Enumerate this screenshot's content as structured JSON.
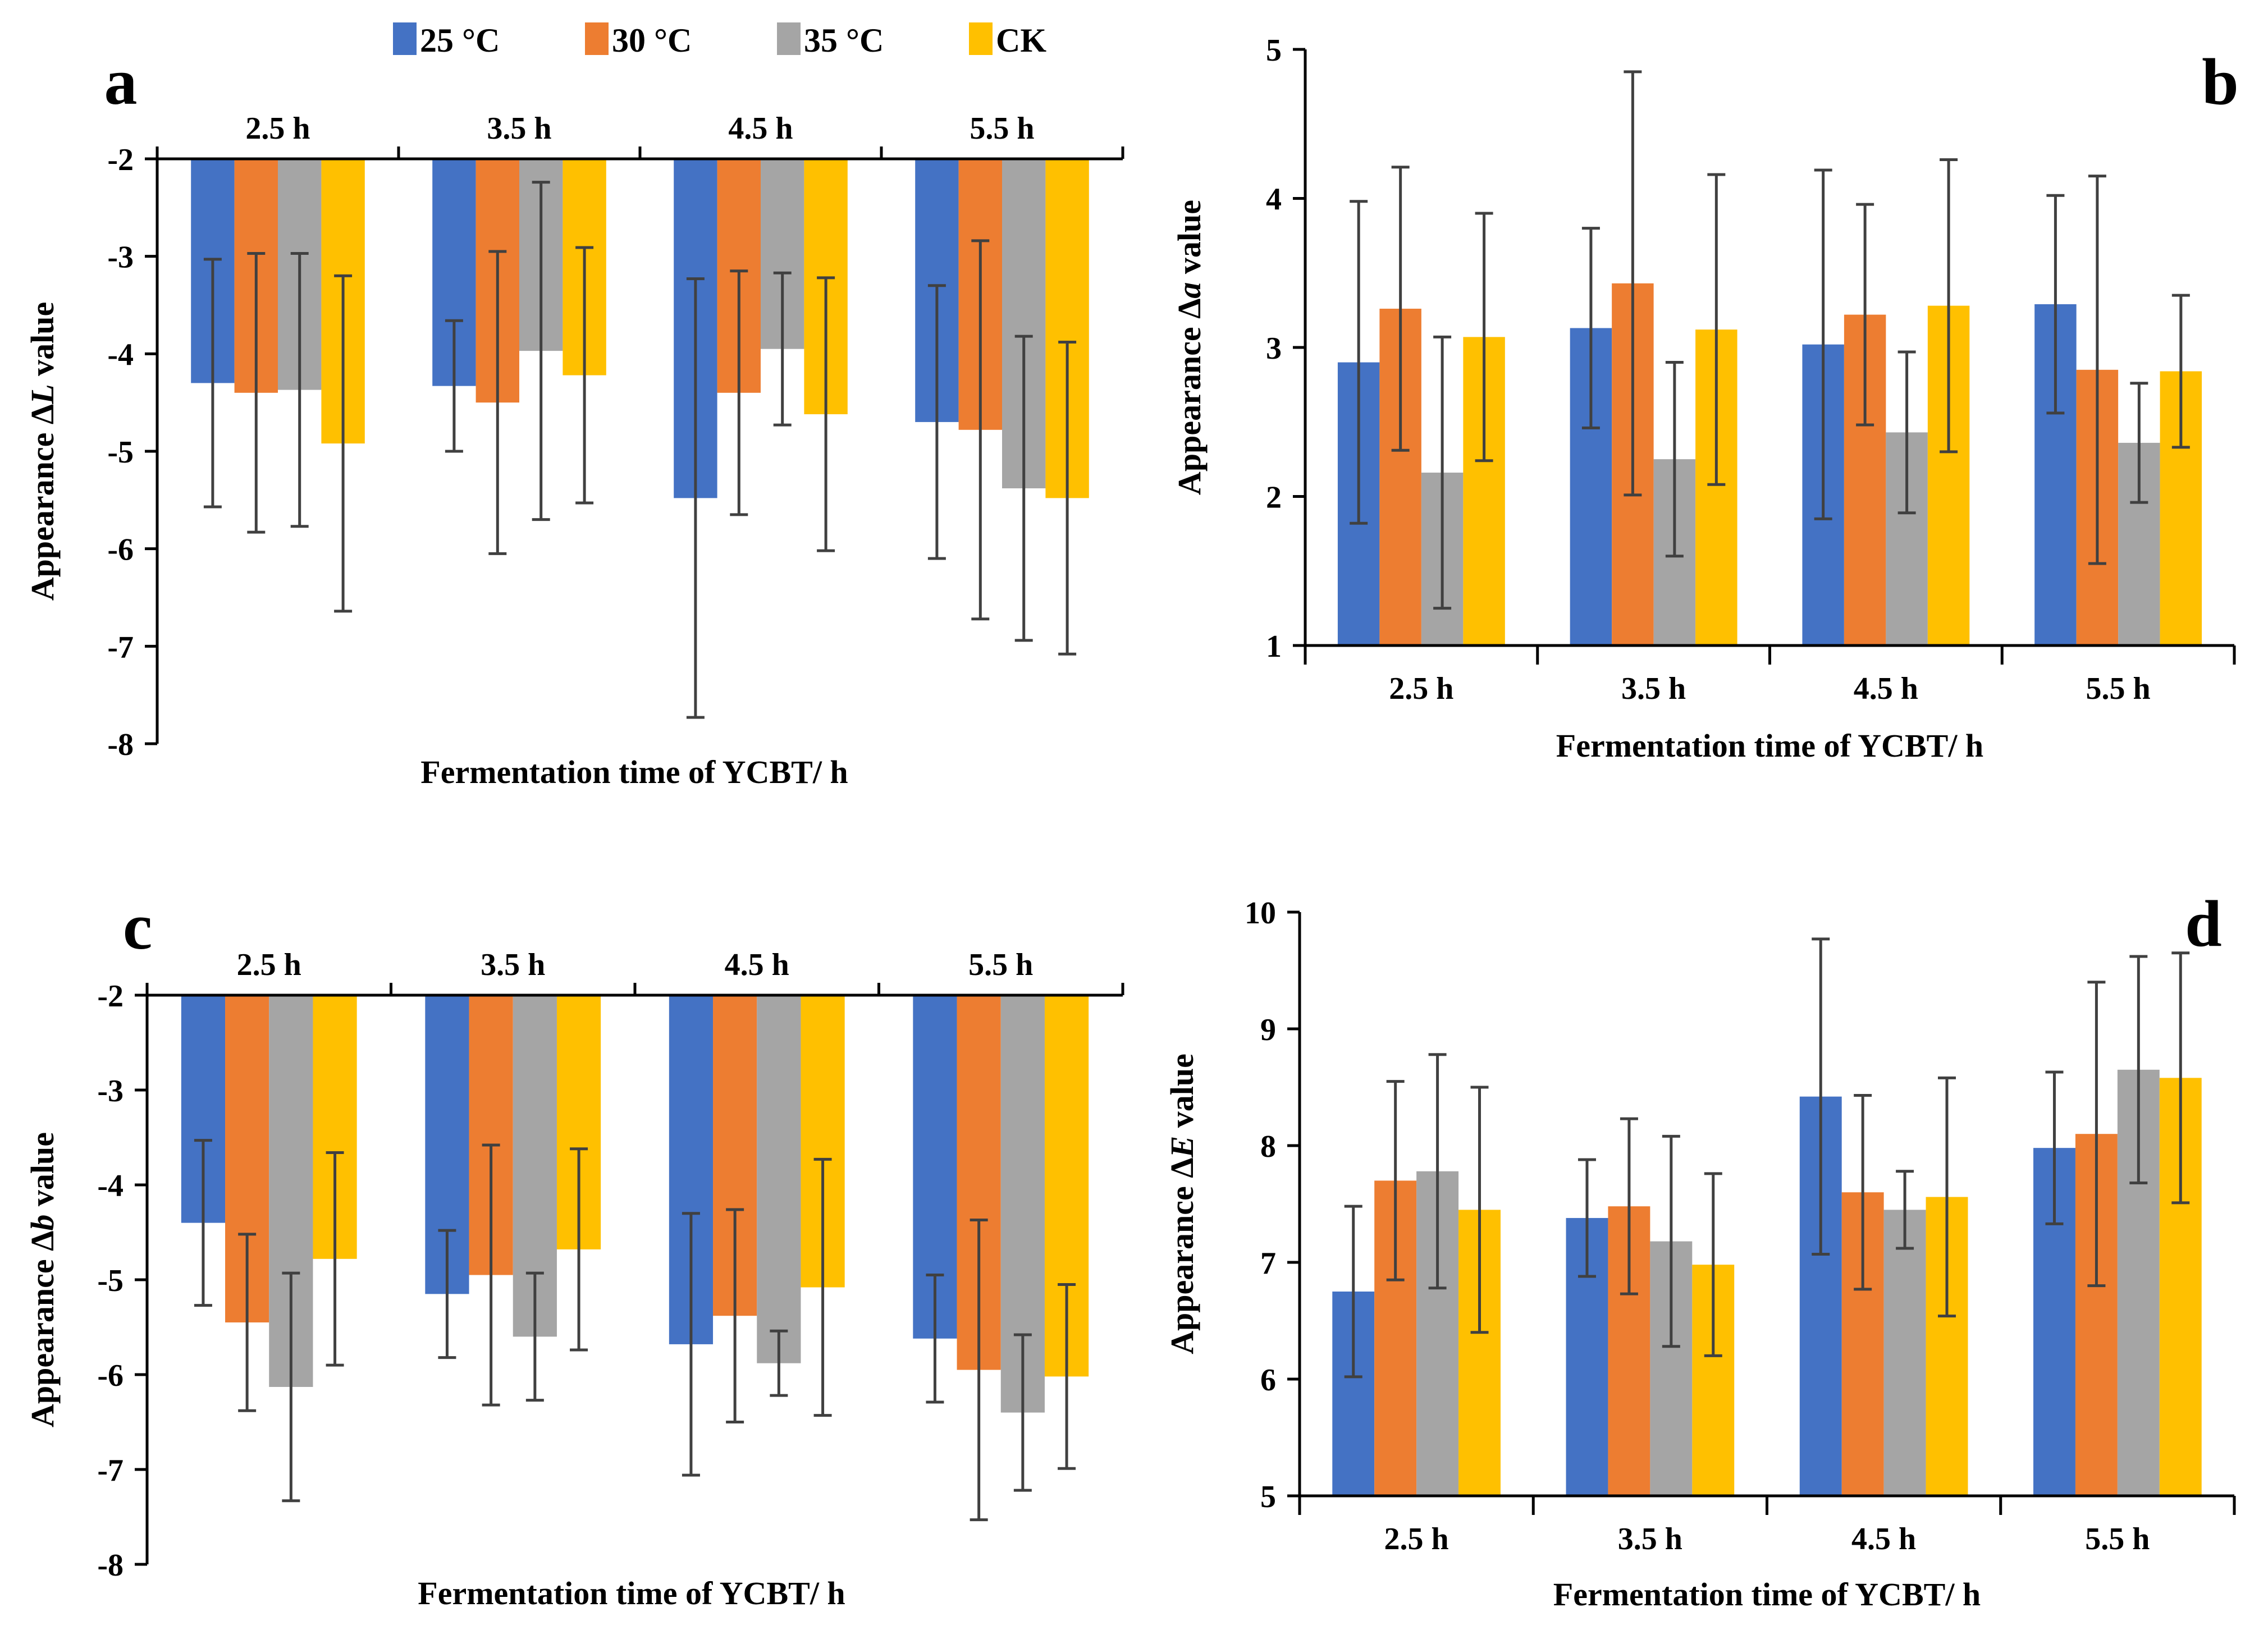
{
  "legend": [
    {
      "label": "25 °C",
      "color": "#4472C4"
    },
    {
      "label": "30 °C",
      "color": "#ED7D31"
    },
    {
      "label": "35 °C",
      "color": "#A5A5A5"
    },
    {
      "label": "CK",
      "color": "#FFC000"
    }
  ],
  "chart_data": [
    {
      "type": "bar",
      "panel": "a",
      "categories": [
        "2.5 h",
        "3.5 h",
        "4.5 h",
        "5.5 h"
      ],
      "xlabel": "Fermentation time of YCBT/ h",
      "ylabel_prefix": "Appearance Δ",
      "ylabel_var": "L",
      "ylabel_suffix": " value",
      "ylim": [
        -8,
        -2
      ],
      "yticks": [
        -2,
        -3,
        -4,
        -5,
        -6,
        -7,
        -8
      ],
      "categories_on_top": true,
      "series": [
        {
          "name": "25 °C",
          "values": [
            -4.3,
            -4.33,
            -5.48,
            -4.7
          ],
          "errors": [
            1.27,
            0.67,
            2.25,
            1.4
          ]
        },
        {
          "name": "30 °C",
          "values": [
            -4.4,
            -4.5,
            -4.4,
            -4.78
          ],
          "errors": [
            1.43,
            1.55,
            1.25,
            1.94
          ]
        },
        {
          "name": "35 °C",
          "values": [
            -4.37,
            -3.97,
            -3.95,
            -5.38
          ],
          "errors": [
            1.4,
            1.73,
            0.78,
            1.56
          ]
        },
        {
          "name": "CK",
          "values": [
            -4.92,
            -4.22,
            -4.62,
            -5.48
          ],
          "errors": [
            1.72,
            1.31,
            1.4,
            1.6
          ]
        }
      ]
    },
    {
      "type": "bar",
      "panel": "b",
      "categories": [
        "2.5 h",
        "3.5 h",
        "4.5 h",
        "5.5 h"
      ],
      "xlabel": "Fermentation time of YCBT/ h",
      "ylabel_prefix": "Appearance Δ",
      "ylabel_var": "a",
      "ylabel_suffix": " value",
      "ylim": [
        1,
        5
      ],
      "yticks": [
        1,
        2,
        3,
        4,
        5
      ],
      "categories_on_top": false,
      "series": [
        {
          "name": "25 °C",
          "values": [
            2.9,
            3.13,
            3.02,
            3.29
          ],
          "errors": [
            1.08,
            0.67,
            1.17,
            0.73
          ]
        },
        {
          "name": "30 °C",
          "values": [
            3.26,
            3.43,
            3.22,
            2.85
          ],
          "errors": [
            0.95,
            1.42,
            0.74,
            1.3
          ]
        },
        {
          "name": "35 °C",
          "values": [
            2.16,
            2.25,
            2.43,
            2.36
          ],
          "errors": [
            0.91,
            0.65,
            0.54,
            0.4
          ]
        },
        {
          "name": "CK",
          "values": [
            3.07,
            3.12,
            3.28,
            2.84
          ],
          "errors": [
            0.83,
            1.04,
            0.98,
            0.51
          ]
        }
      ]
    },
    {
      "type": "bar",
      "panel": "c",
      "categories": [
        "2.5 h",
        "3.5 h",
        "4.5 h",
        "5.5 h"
      ],
      "xlabel": "Fermentation time of YCBT/ h",
      "ylabel_prefix": "Appearance Δ",
      "ylabel_var": "b",
      "ylabel_suffix": " value",
      "ylim": [
        -8,
        -2
      ],
      "yticks": [
        -2,
        -3,
        -4,
        -5,
        -6,
        -7,
        -8
      ],
      "categories_on_top": true,
      "series": [
        {
          "name": "25 °C",
          "values": [
            -4.4,
            -5.15,
            -5.68,
            -5.62
          ],
          "errors": [
            0.87,
            0.67,
            1.38,
            0.67
          ]
        },
        {
          "name": "30 °C",
          "values": [
            -5.45,
            -4.95,
            -5.38,
            -5.95
          ],
          "errors": [
            0.93,
            1.37,
            1.12,
            1.58
          ]
        },
        {
          "name": "35 °C",
          "values": [
            -6.13,
            -5.6,
            -5.88,
            -6.4
          ],
          "errors": [
            1.2,
            0.67,
            0.34,
            0.82
          ]
        },
        {
          "name": "CK",
          "values": [
            -4.78,
            -4.68,
            -5.08,
            -6.02
          ],
          "errors": [
            1.12,
            1.06,
            1.35,
            0.97
          ]
        }
      ]
    },
    {
      "type": "bar",
      "panel": "d",
      "categories": [
        "2.5 h",
        "3.5 h",
        "4.5 h",
        "5.5 h"
      ],
      "xlabel": "Fermentation time of YCBT/ h",
      "ylabel_prefix": "Appearance Δ",
      "ylabel_var": "E",
      "ylabel_suffix": " value",
      "ylim": [
        5,
        10
      ],
      "yticks": [
        5,
        6,
        7,
        8,
        9,
        10
      ],
      "categories_on_top": false,
      "series": [
        {
          "name": "25 °C",
          "values": [
            6.75,
            7.38,
            8.42,
            7.98
          ],
          "errors": [
            0.73,
            0.5,
            1.35,
            0.65
          ]
        },
        {
          "name": "30 °C",
          "values": [
            7.7,
            7.48,
            7.6,
            8.1
          ],
          "errors": [
            0.85,
            0.75,
            0.83,
            1.3
          ]
        },
        {
          "name": "35 °C",
          "values": [
            7.78,
            7.18,
            7.45,
            8.65
          ],
          "errors": [
            1.0,
            0.9,
            0.33,
            0.97
          ]
        },
        {
          "name": "CK",
          "values": [
            7.45,
            6.98,
            7.56,
            8.58
          ],
          "errors": [
            1.05,
            0.78,
            1.02,
            1.07
          ]
        }
      ]
    }
  ]
}
